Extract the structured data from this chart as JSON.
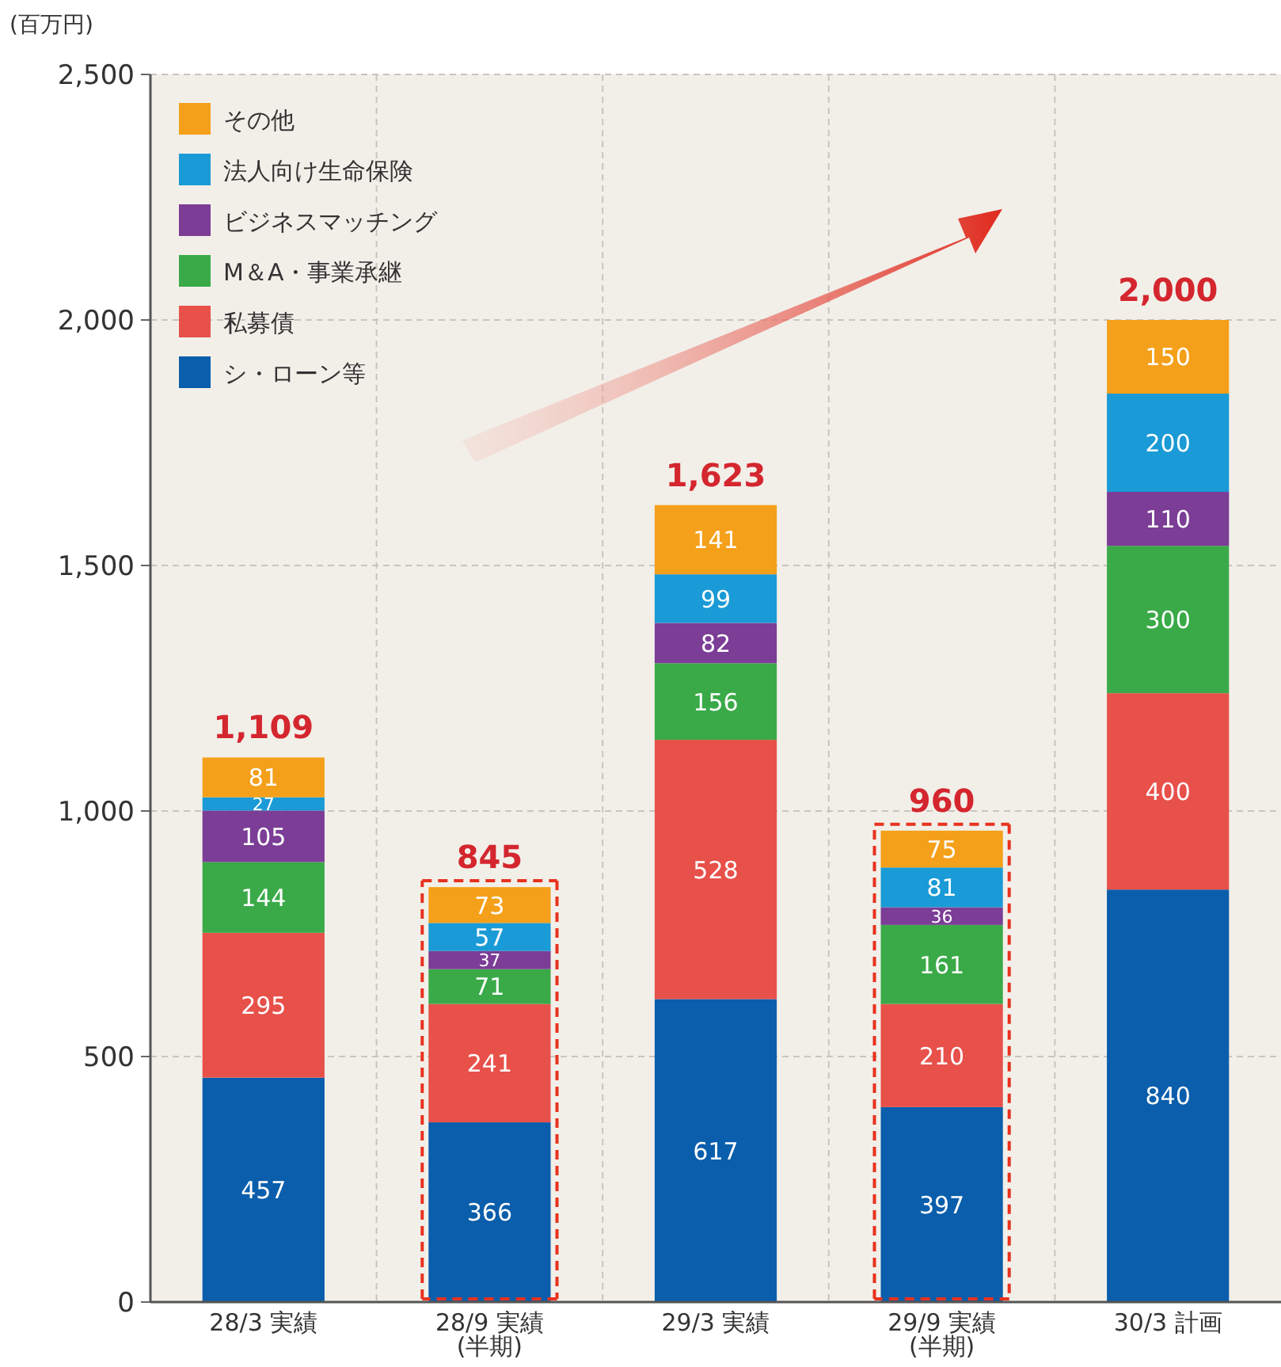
{
  "chart_data": {
    "type": "bar",
    "stacked": true,
    "ylabel": "(百万円)",
    "categories": [
      "28/3 実績",
      "28/9 実績\n(半期)",
      "29/3 実績",
      "29/9 実績\n(半期)",
      "30/3 計画"
    ],
    "series": [
      {
        "name": "シ・ローン等",
        "color": "#0a5eab",
        "values": [
          457,
          366,
          617,
          397,
          840
        ]
      },
      {
        "name": "私募債",
        "color": "#e8504a",
        "values": [
          295,
          241,
          528,
          210,
          400
        ]
      },
      {
        "name": "M＆A・事業承継",
        "color": "#3aaa48",
        "values": [
          144,
          71,
          156,
          161,
          300
        ]
      },
      {
        "name": "ビジネスマッチング",
        "color": "#7b3d96",
        "values": [
          105,
          37,
          82,
          36,
          110
        ]
      },
      {
        "name": "法人向け生命保険",
        "color": "#1a9ad6",
        "values": [
          27,
          57,
          99,
          81,
          200
        ]
      },
      {
        "name": "その他",
        "color": "#f5a01a",
        "values": [
          81,
          73,
          141,
          75,
          150
        ]
      }
    ],
    "totals": [
      "1,109",
      "845",
      "1,623",
      "960",
      "2,000"
    ],
    "ylim": [
      0,
      2500
    ],
    "yticks": [
      0,
      {
        "value": 500,
        "label": "500"
      },
      {
        "value": 1000,
        "label": "1,000"
      },
      {
        "value": 1500,
        "label": "1,500"
      },
      {
        "value": 2000,
        "label": "2,000"
      },
      {
        "value": 2500,
        "label": "2,500"
      }
    ],
    "data_labels": true,
    "grid": true,
    "legend": "top left"
  }
}
